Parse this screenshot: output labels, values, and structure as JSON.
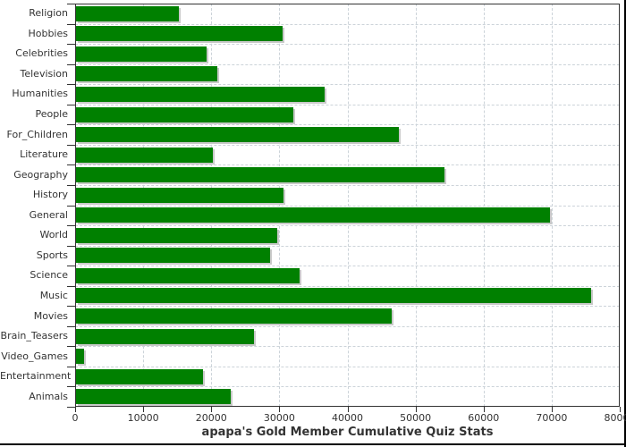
{
  "page": {
    "background": "#ffffff",
    "border_color": "#000000"
  },
  "chart_data": {
    "type": "bar",
    "orientation": "horizontal",
    "title": "apapa's Gold Member Cumulative Quiz Stats",
    "xlabel": "",
    "ylabel": "",
    "categories": [
      "Religion",
      "Hobbies",
      "Celebrities",
      "Television",
      "Humanities",
      "People",
      "For_Children",
      "Literature",
      "Geography",
      "History",
      "General",
      "World",
      "Sports",
      "Science",
      "Music",
      "Movies",
      "Brain_Teasers",
      "Video_Games",
      "Entertainment",
      "Animals"
    ],
    "values": [
      15100,
      30400,
      19200,
      20800,
      36500,
      31900,
      47400,
      20100,
      54100,
      30500,
      69600,
      29500,
      28500,
      32800,
      75600,
      46400,
      26100,
      1200,
      18600,
      22700
    ],
    "xlim": [
      0,
      80000
    ],
    "x_ticks": [
      0,
      10000,
      20000,
      30000,
      40000,
      50000,
      60000,
      70000,
      80000
    ],
    "grid": true,
    "legend": "none",
    "bar_color": "#008000",
    "bar_shadow_color": "#c9c9c9",
    "grid_color": "#ccd3d9",
    "axis_color": "#333333",
    "text_color": "#333333"
  }
}
